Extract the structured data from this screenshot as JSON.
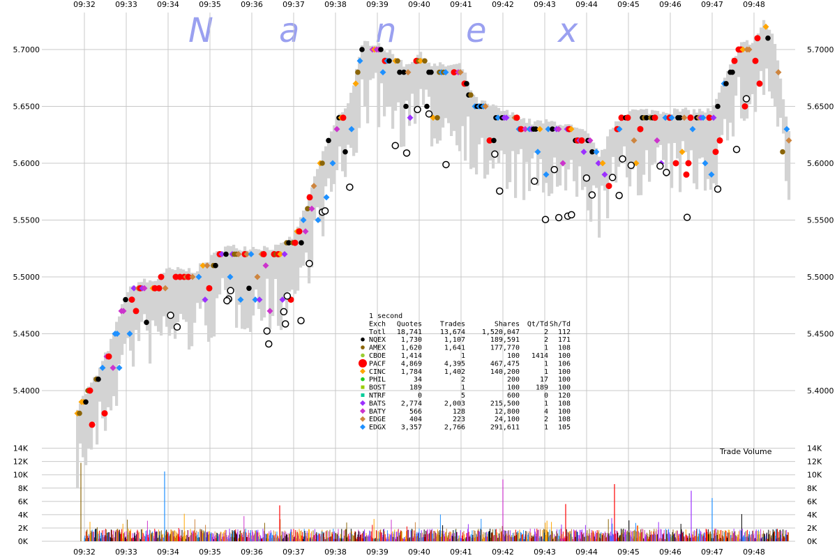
{
  "logo_letters": [
    "N",
    "a",
    "n",
    "e",
    "x"
  ],
  "volume_label": "Trade Volume",
  "colors": {
    "NQEX": "#000000",
    "AMEX": "#8b6508",
    "CBOE": "#9acd32",
    "PACF": "#ff0000",
    "CINC": "#ffa500",
    "PHIL": "#22cc22",
    "BOST": "#99cc00",
    "NTRF": "#00cc99",
    "BATS": "#9b30ff",
    "BATY": "#cc33cc",
    "EDGE": "#cd853f",
    "EDGX": "#1e90ff",
    "range": "#d3d3d3",
    "grid": "#c8c8c8",
    "logo": "#9aa0f0"
  },
  "summary": {
    "interval": "1 second",
    "headers": [
      "Exch",
      "Quotes",
      "Trades",
      "Shares",
      "Qt/Td",
      "Sh/Td"
    ],
    "rows": [
      {
        "exch": "Totl",
        "quotes": "18,741",
        "trades": "13,674",
        "shares": "1,520,047",
        "qt_td": "2",
        "sh_td": "112",
        "marker": ""
      },
      {
        "exch": "NQEX",
        "quotes": "1,730",
        "trades": "1,107",
        "shares": "189,591",
        "qt_td": "2",
        "sh_td": "171",
        "marker": "circle"
      },
      {
        "exch": "AMEX",
        "quotes": "1,620",
        "trades": "1,641",
        "shares": "177,770",
        "qt_td": "1",
        "sh_td": "108",
        "marker": "circle"
      },
      {
        "exch": "CBOE",
        "quotes": "1,414",
        "trades": "1",
        "shares": "100",
        "qt_td": "1414",
        "sh_td": "100",
        "marker": "circle"
      },
      {
        "exch": "PACF",
        "quotes": "4,869",
        "trades": "4,395",
        "shares": "467,475",
        "qt_td": "1",
        "sh_td": "106",
        "marker": "bigcircle"
      },
      {
        "exch": "CINC",
        "quotes": "1,784",
        "trades": "1,402",
        "shares": "140,200",
        "qt_td": "1",
        "sh_td": "100",
        "marker": "diamond"
      },
      {
        "exch": "PHIL",
        "quotes": "34",
        "trades": "2",
        "shares": "200",
        "qt_td": "17",
        "sh_td": "100",
        "marker": "circle"
      },
      {
        "exch": "BOST",
        "quotes": "189",
        "trades": "1",
        "shares": "100",
        "qt_td": "189",
        "sh_td": "100",
        "marker": "square"
      },
      {
        "exch": "NTRF",
        "quotes": "0",
        "trades": "5",
        "shares": "600",
        "qt_td": "0",
        "sh_td": "120",
        "marker": "square"
      },
      {
        "exch": "BATS",
        "quotes": "2,774",
        "trades": "2,003",
        "shares": "215,500",
        "qt_td": "1",
        "sh_td": "108",
        "marker": "diamond"
      },
      {
        "exch": "BATY",
        "quotes": "566",
        "trades": "128",
        "shares": "12,800",
        "qt_td": "4",
        "sh_td": "100",
        "marker": "diamond"
      },
      {
        "exch": "EDGE",
        "quotes": "404",
        "trades": "223",
        "shares": "24,100",
        "qt_td": "2",
        "sh_td": "108",
        "marker": "diamond"
      },
      {
        "exch": "EDGX",
        "quotes": "3,357",
        "trades": "2,766",
        "shares": "291,611",
        "qt_td": "1",
        "sh_td": "105",
        "marker": "diamond"
      }
    ]
  },
  "chart_data": [
    {
      "type": "scatter",
      "title": "",
      "x_ticks": [
        "09:32",
        "09:33",
        "09:34",
        "09:35",
        "09:36",
        "09:37",
        "09:38",
        "09:39",
        "09:40",
        "09:41",
        "09:42",
        "09:43",
        "09:44",
        "09:45",
        "09:46",
        "09:47",
        "09:48"
      ],
      "y_ticks": [
        "5.4000",
        "5.4500",
        "5.5000",
        "5.5500",
        "5.6000",
        "5.6500",
        "5.7000"
      ],
      "ylim": [
        5.35,
        5.725
      ],
      "grid": true,
      "price_path": [
        {
          "t": "09:31:50",
          "p": 5.38
        },
        {
          "t": "09:32:00",
          "p": 5.39
        },
        {
          "t": "09:32:20",
          "p": 5.41
        },
        {
          "t": "09:32:40",
          "p": 5.44
        },
        {
          "t": "09:33:00",
          "p": 5.48
        },
        {
          "t": "09:33:20",
          "p": 5.49
        },
        {
          "t": "09:33:40",
          "p": 5.49
        },
        {
          "t": "09:34:00",
          "p": 5.5
        },
        {
          "t": "09:34:40",
          "p": 5.5
        },
        {
          "t": "09:35:00",
          "p": 5.51
        },
        {
          "t": "09:35:20",
          "p": 5.52
        },
        {
          "t": "09:36:00",
          "p": 5.52
        },
        {
          "t": "09:36:40",
          "p": 5.52
        },
        {
          "t": "09:37:00",
          "p": 5.53
        },
        {
          "t": "09:37:20",
          "p": 5.56
        },
        {
          "t": "09:37:40",
          "p": 5.6
        },
        {
          "t": "09:38:00",
          "p": 5.63
        },
        {
          "t": "09:38:20",
          "p": 5.65
        },
        {
          "t": "09:38:40",
          "p": 5.7
        },
        {
          "t": "09:39:00",
          "p": 5.7
        },
        {
          "t": "09:39:20",
          "p": 5.69
        },
        {
          "t": "09:39:40",
          "p": 5.68
        },
        {
          "t": "09:40:00",
          "p": 5.69
        },
        {
          "t": "09:40:20",
          "p": 5.68
        },
        {
          "t": "09:41:00",
          "p": 5.68
        },
        {
          "t": "09:41:20",
          "p": 5.65
        },
        {
          "t": "09:42:00",
          "p": 5.64
        },
        {
          "t": "09:42:40",
          "p": 5.63
        },
        {
          "t": "09:43:20",
          "p": 5.63
        },
        {
          "t": "09:44:00",
          "p": 5.62
        },
        {
          "t": "09:44:20",
          "p": 5.6
        },
        {
          "t": "09:44:40",
          "p": 5.63
        },
        {
          "t": "09:45:00",
          "p": 5.64
        },
        {
          "t": "09:45:40",
          "p": 5.64
        },
        {
          "t": "09:46:20",
          "p": 5.64
        },
        {
          "t": "09:47:00",
          "p": 5.64
        },
        {
          "t": "09:47:20",
          "p": 5.67
        },
        {
          "t": "09:47:40",
          "p": 5.7
        },
        {
          "t": "09:48:00",
          "p": 5.7
        },
        {
          "t": "09:48:15",
          "p": 5.72
        },
        {
          "t": "09:48:30",
          "p": 5.7
        },
        {
          "t": "09:48:50",
          "p": 5.62
        }
      ]
    },
    {
      "type": "bar",
      "title": "",
      "x_ticks": [
        "09:32",
        "09:33",
        "09:34",
        "09:35",
        "09:36",
        "09:37",
        "09:38",
        "09:39",
        "09:40",
        "09:41",
        "09:42",
        "09:43",
        "09:44",
        "09:45",
        "09:46",
        "09:47",
        "09:48"
      ],
      "y_ticks": [
        "0K",
        "2K",
        "4K",
        "6K",
        "8K",
        "10K",
        "12K",
        "14K"
      ],
      "ylim": [
        0,
        14000
      ],
      "spikes": [
        {
          "t": "09:31:55",
          "v": 11800,
          "exch": "AMEX"
        },
        {
          "t": "09:33:55",
          "v": 10500,
          "exch": "EDGX"
        },
        {
          "t": "09:42:00",
          "v": 9300,
          "exch": "BATY"
        },
        {
          "t": "09:44:40",
          "v": 8600,
          "exch": "PACF"
        },
        {
          "t": "09:46:30",
          "v": 7600,
          "exch": "BATS"
        },
        {
          "t": "09:47:00",
          "v": 6500,
          "exch": "EDGX"
        },
        {
          "t": "09:36:40",
          "v": 5400,
          "exch": "PACF"
        },
        {
          "t": "09:43:30",
          "v": 5600,
          "exch": "PACF"
        }
      ]
    }
  ]
}
